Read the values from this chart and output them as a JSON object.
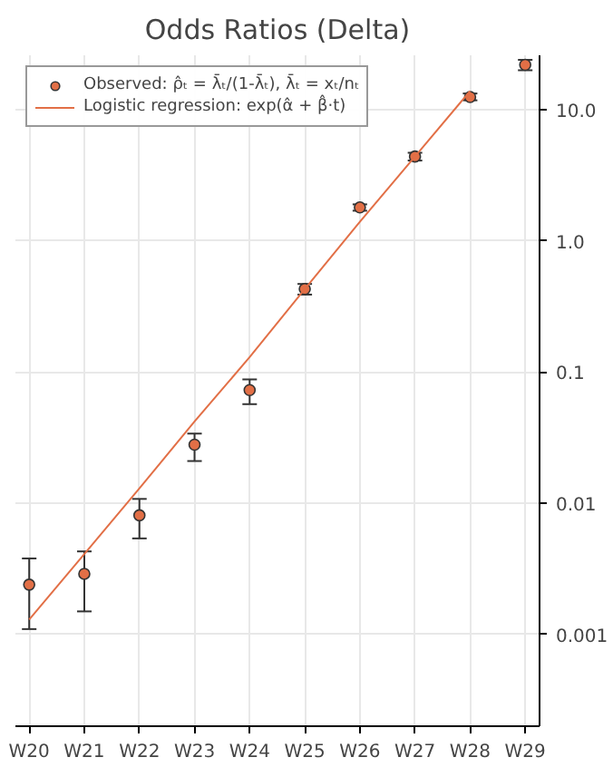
{
  "chart_data": {
    "type": "scatter",
    "title": "Odds Ratios (Delta)",
    "categories": [
      "W20",
      "W21",
      "W22",
      "W23",
      "W24",
      "W25",
      "W26",
      "W27",
      "W28",
      "W29"
    ],
    "ylim": [
      0.0002,
      26
    ],
    "yticks": [
      0.001,
      0.01,
      0.1,
      {
        "value": 1,
        "label": "1.0"
      },
      {
        "value": 10,
        "label": "10.0"
      }
    ],
    "log": "y",
    "grid": true,
    "legend": "top left",
    "series": [
      {
        "name": "Observed: ρ̂ₜ = λ̄ₜ/(1-λ̄ₜ), λ̄ₜ = xₜ/nₜ",
        "marker": "circle",
        "color": "#e26f46",
        "values": [
          0.0024,
          0.0029,
          0.0081,
          0.028,
          0.073,
          0.43,
          1.8,
          4.4,
          12.5,
          22
        ],
        "errors": [
          [
            0.0011,
            0.0038
          ],
          [
            0.0015,
            0.0043
          ],
          [
            0.0054,
            0.0108
          ],
          [
            0.021,
            0.034
          ],
          [
            0.057,
            0.088
          ],
          [
            0.39,
            0.47
          ],
          [
            1.7,
            1.9
          ],
          [
            4.1,
            4.7
          ],
          [
            11.8,
            13.3
          ],
          [
            20,
            24
          ]
        ]
      },
      {
        "name": "Logistic regression: exp(α̂ + β̂·t)",
        "type": "line",
        "color": "#e26f46",
        "values": [
          0.0013,
          0.0041,
          0.013,
          0.042,
          0.13,
          0.43,
          1.4,
          4.4,
          13.9,
          null
        ]
      }
    ]
  }
}
